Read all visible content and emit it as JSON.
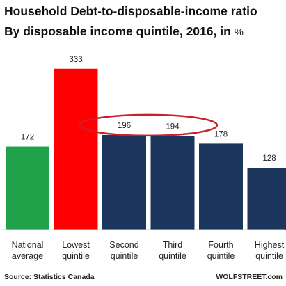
{
  "chart_data": {
    "type": "bar",
    "title_line1": "Household Debt-to-disposable-income ratio",
    "title_line2": "By disposable income quintile, 2016, in",
    "title_unit": "%",
    "categories": [
      [
        "National",
        "average"
      ],
      [
        "Lowest",
        "quintile"
      ],
      [
        "Second",
        "quintile"
      ],
      [
        "Third",
        "quintile"
      ],
      [
        "Fourth",
        "quintile"
      ],
      [
        "Highest",
        "quintile"
      ]
    ],
    "values": [
      172,
      333,
      196,
      194,
      178,
      128
    ],
    "value_labels": [
      "172",
      "333",
      "196",
      "194",
      "178",
      "128"
    ],
    "bar_colors": [
      "#1fa24a",
      "#ff0000",
      "#1b355c",
      "#1b355c",
      "#1b355c",
      "#1b355c"
    ],
    "highlight": {
      "categories": [
        2,
        3
      ],
      "color": "#cc1f2a",
      "shape": "ellipse"
    },
    "ylim": [
      0,
      360
    ],
    "grid": false,
    "legend": "none",
    "source": "Source: Statistics Canada",
    "brand": "WOLFSTREET.com"
  }
}
